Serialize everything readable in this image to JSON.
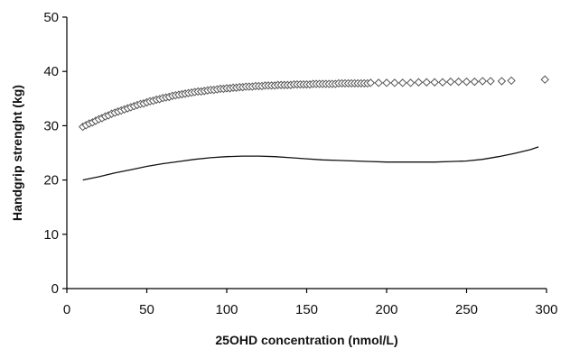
{
  "chart_data": {
    "type": "scatter",
    "title": "",
    "xlabel": "25OHD concentration (nmol/L)",
    "ylabel": "Handgrip strenght (kg)",
    "xlim": [
      0,
      300
    ],
    "ylim": [
      0,
      50
    ],
    "xticks": [
      "0",
      "50",
      "100",
      "150",
      "200",
      "250",
      "300"
    ],
    "yticks": [
      "0",
      "10",
      "20",
      "30",
      "40",
      "50"
    ],
    "grid": false,
    "legend": "none",
    "series": [
      {
        "marker": "diamond",
        "x": [
          10,
          12,
          14,
          16,
          18,
          20,
          22,
          24,
          26,
          28,
          30,
          32,
          34,
          36,
          38,
          40,
          42,
          44,
          46,
          48,
          50,
          52,
          54,
          56,
          58,
          60,
          62,
          64,
          66,
          68,
          70,
          72,
          74,
          76,
          78,
          80,
          82,
          84,
          86,
          88,
          90,
          92,
          94,
          96,
          98,
          100,
          102,
          104,
          106,
          108,
          110,
          112,
          114,
          116,
          118,
          120,
          122,
          124,
          126,
          128,
          130,
          132,
          134,
          136,
          138,
          140,
          142,
          144,
          146,
          148,
          150,
          152,
          154,
          156,
          158,
          160,
          162,
          164,
          166,
          168,
          170,
          172,
          174,
          176,
          178,
          180,
          182,
          184,
          186,
          188,
          190,
          195,
          200,
          205,
          210,
          215,
          220,
          225,
          230,
          235,
          240,
          245,
          250,
          255,
          260,
          265,
          272,
          278,
          299
        ],
        "y": [
          29.8,
          30.1,
          30.4,
          30.6,
          30.9,
          31.2,
          31.4,
          31.7,
          31.9,
          32.2,
          32.4,
          32.6,
          32.8,
          33.0,
          33.2,
          33.4,
          33.6,
          33.8,
          34.0,
          34.1,
          34.3,
          34.5,
          34.6,
          34.8,
          34.9,
          35.1,
          35.2,
          35.3,
          35.5,
          35.6,
          35.7,
          35.8,
          35.9,
          36.0,
          36.1,
          36.2,
          36.3,
          36.3,
          36.4,
          36.5,
          36.6,
          36.6,
          36.7,
          36.8,
          36.8,
          36.9,
          36.9,
          37.0,
          37.0,
          37.1,
          37.1,
          37.2,
          37.2,
          37.2,
          37.3,
          37.3,
          37.3,
          37.4,
          37.4,
          37.4,
          37.4,
          37.5,
          37.5,
          37.5,
          37.5,
          37.5,
          37.6,
          37.6,
          37.6,
          37.6,
          37.6,
          37.6,
          37.7,
          37.7,
          37.7,
          37.7,
          37.7,
          37.7,
          37.7,
          37.7,
          37.8,
          37.8,
          37.8,
          37.8,
          37.8,
          37.8,
          37.8,
          37.8,
          37.8,
          37.8,
          37.9,
          37.9,
          37.9,
          37.9,
          37.9,
          37.9,
          38.0,
          38.0,
          38.0,
          38.0,
          38.1,
          38.1,
          38.1,
          38.1,
          38.2,
          38.2,
          38.2,
          38.3,
          38.5
        ]
      },
      {
        "marker": "line",
        "x": [
          10,
          20,
          30,
          40,
          50,
          60,
          70,
          80,
          90,
          100,
          110,
          120,
          130,
          140,
          150,
          160,
          170,
          180,
          190,
          200,
          210,
          220,
          230,
          240,
          250,
          260,
          270,
          280,
          290,
          295
        ],
        "y": [
          20.0,
          20.6,
          21.3,
          21.9,
          22.5,
          23.0,
          23.4,
          23.8,
          24.1,
          24.3,
          24.4,
          24.4,
          24.3,
          24.1,
          23.9,
          23.7,
          23.6,
          23.5,
          23.4,
          23.3,
          23.3,
          23.3,
          23.3,
          23.4,
          23.5,
          23.8,
          24.3,
          24.9,
          25.6,
          26.1
        ]
      }
    ]
  }
}
